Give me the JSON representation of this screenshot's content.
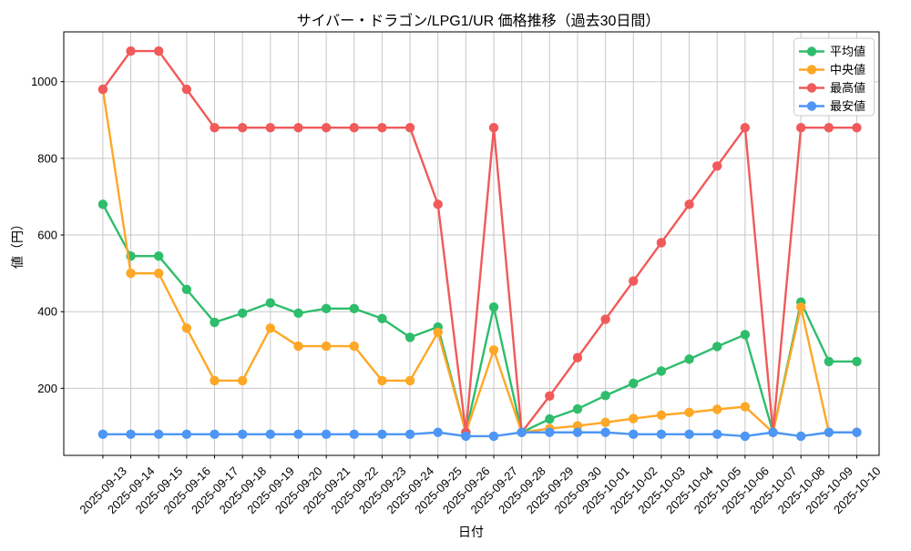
{
  "title": "サイバー・ドラゴン/LPG1/UR 価格推移（過去30日間）",
  "chart_data": {
    "type": "line",
    "title": "サイバー・ドラゴン/LPG1/UR 価格推移（過去30日間）",
    "xlabel": "日付",
    "ylabel": "値（円）",
    "grid": true,
    "legend_position": "upper right",
    "marker": "circle",
    "x_tick_rotation": 45,
    "yticks": [
      200,
      400,
      600,
      800,
      1000
    ],
    "ylim": [
      25,
      1130
    ],
    "xlim": [
      -1.4,
      27.8
    ],
    "x": [
      "2025-09-13",
      "2025-09-14",
      "2025-09-15",
      "2025-09-16",
      "2025-09-17",
      "2025-09-18",
      "2025-09-19",
      "2025-09-20",
      "2025-09-21",
      "2025-09-22",
      "2025-09-23",
      "2025-09-24",
      "2025-09-25",
      "2025-09-26",
      "2025-09-27",
      "2025-09-28",
      "2025-09-29",
      "2025-09-30",
      "2025-10-01",
      "2025-10-02",
      "2025-10-03",
      "2025-10-04",
      "2025-10-05",
      "2025-10-06",
      "2025-10-07",
      "2025-10-08",
      "2025-10-09",
      "2025-10-10"
    ],
    "series": [
      {
        "key": "average",
        "name": "平均値",
        "color": "#2ebd6b",
        "values": [
          680,
          545,
          545,
          458,
          372,
          396,
          423,
          396,
          408,
          408,
          382,
          333,
          360,
          85,
          412,
          85,
          120,
          146,
          181,
          213,
          245,
          276,
          309,
          340,
          85,
          425,
          270,
          270
        ]
      },
      {
        "key": "median",
        "name": "中央値",
        "color": "#ffa726",
        "values": [
          980,
          500,
          500,
          357,
          220,
          220,
          357,
          310,
          310,
          310,
          220,
          220,
          346,
          85,
          300,
          85,
          95,
          102,
          111,
          121,
          130,
          137,
          145,
          152,
          85,
          412,
          85,
          85
        ]
      },
      {
        "key": "max",
        "name": "最高値",
        "color": "#f15a5a",
        "values": [
          980,
          1080,
          1080,
          980,
          880,
          880,
          880,
          880,
          880,
          880,
          880,
          880,
          680,
          85,
          880,
          85,
          180,
          280,
          380,
          480,
          580,
          680,
          780,
          880,
          85,
          880,
          880,
          880
        ]
      },
      {
        "key": "min",
        "name": "最安値",
        "color": "#4d96f5",
        "values": [
          80,
          80,
          80,
          80,
          80,
          80,
          80,
          80,
          80,
          80,
          80,
          80,
          85,
          75,
          75,
          85,
          85,
          85,
          85,
          80,
          80,
          80,
          80,
          75,
          85,
          75,
          85,
          85
        ]
      }
    ]
  }
}
